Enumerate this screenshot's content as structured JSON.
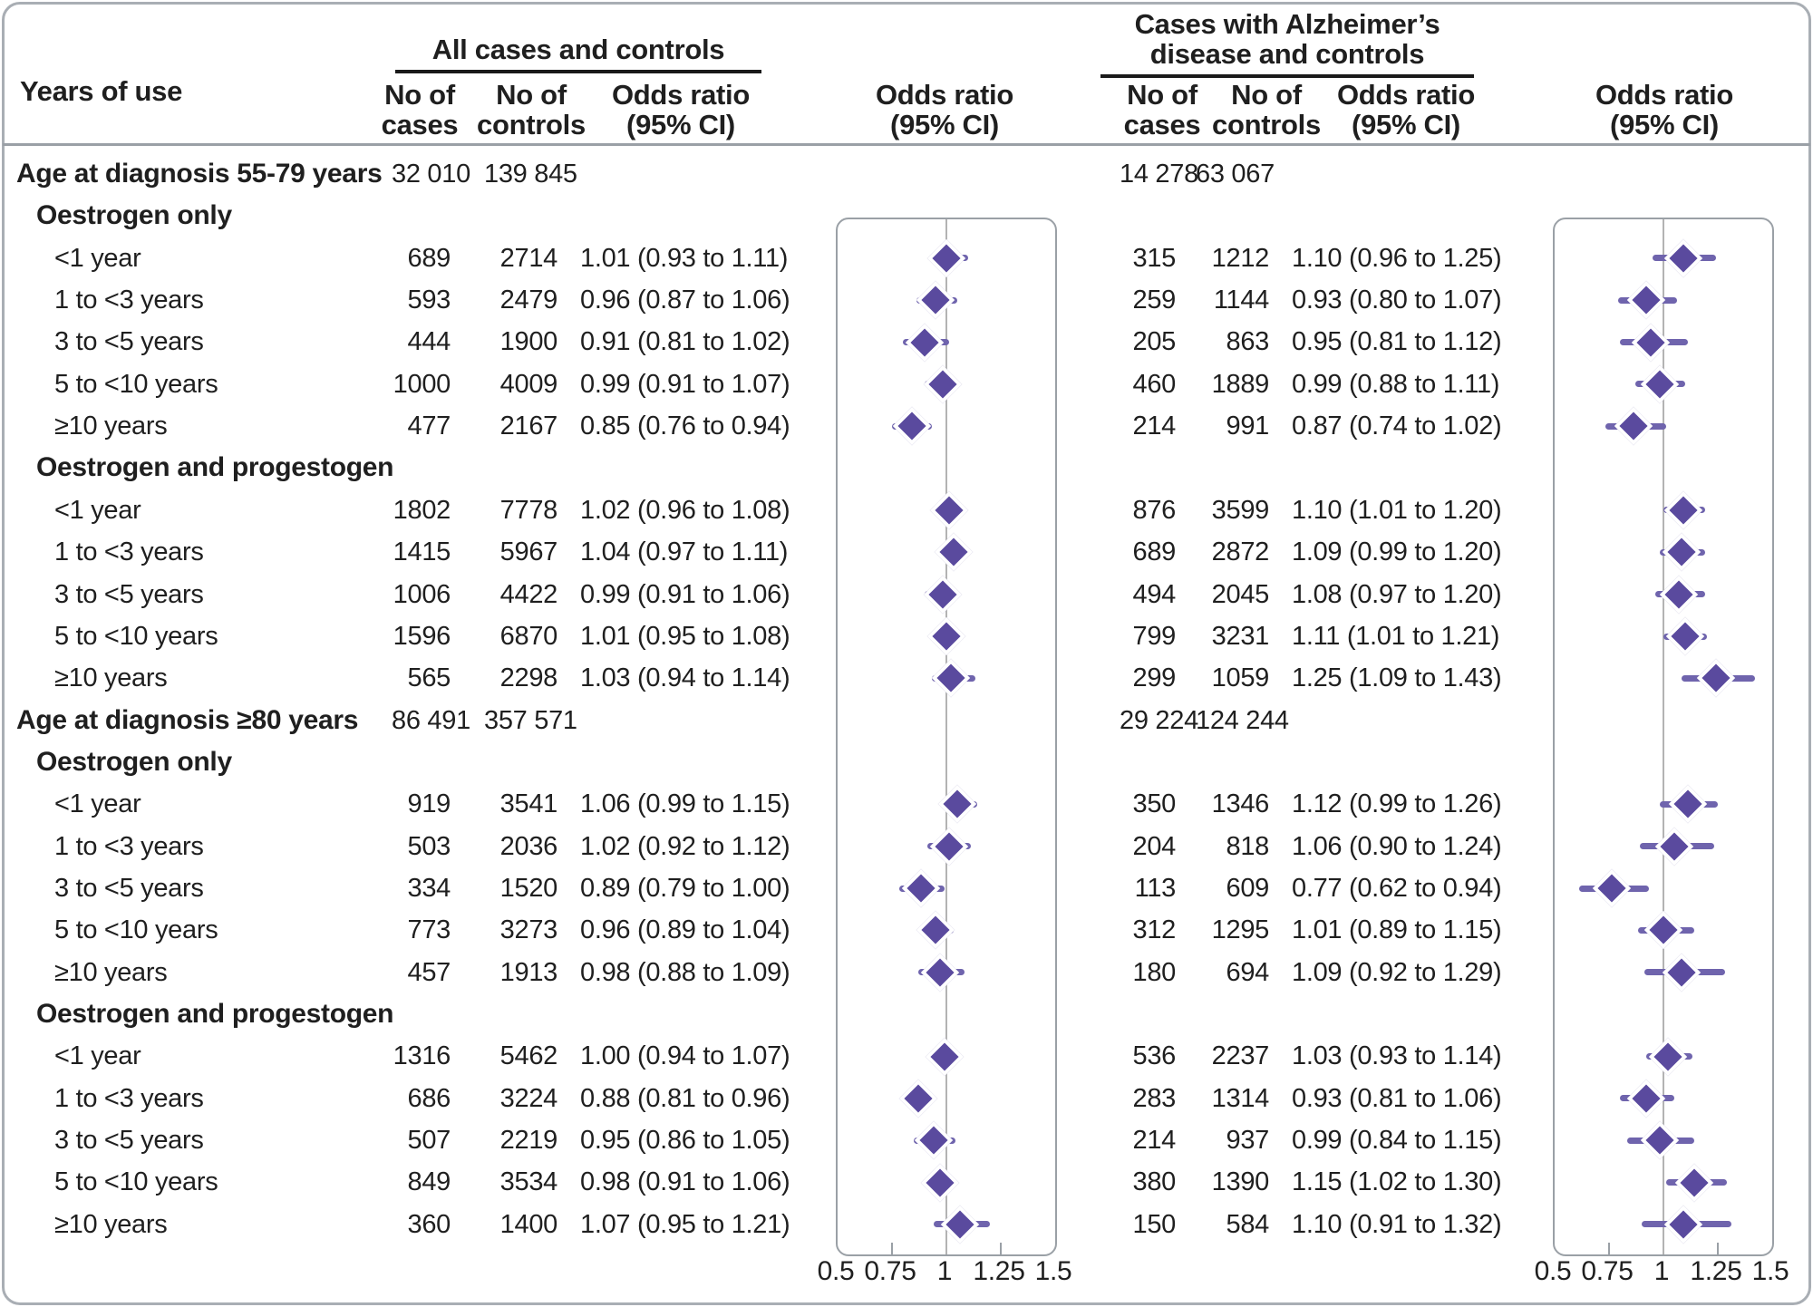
{
  "header": {
    "row_label_col": "Years of use",
    "no_of": "No of",
    "cases": "cases",
    "controls": "controls",
    "odds_ratio": "Odds ratio",
    "ci": "(95% CI)",
    "group1_title": "All cases and controls",
    "group2_title": "Cases with Alzheimer’s\ndisease and controls"
  },
  "colors": {
    "marker_fill": "#5a4a9e",
    "ci_line": "#6f64ad",
    "panel_border": "#9aa0a6",
    "ref_line": "#b3b3b3",
    "frame": "#a9aeb4",
    "text": "#1f1f1f"
  },
  "chart_data": {
    "type": "forest",
    "panels": [
      {
        "name": "All cases and controls",
        "xlim": [
          0.5,
          1.5
        ],
        "ref_line": 1,
        "tick_labels": [
          "0.5",
          "0.75",
          "1",
          "1.25",
          "1.5"
        ],
        "tick_values": [
          0.5,
          0.75,
          1,
          1.25,
          1.5
        ]
      },
      {
        "name": "Cases with Alzheimer’s disease and controls",
        "xlim": [
          0.5,
          1.5
        ],
        "ref_line": 1,
        "tick_labels": [
          "0.5",
          "0.75",
          "1",
          "1.25",
          "1.5"
        ],
        "tick_values": [
          0.5,
          0.75,
          1,
          1.25,
          1.5
        ]
      }
    ],
    "rows": [
      {
        "type": "section",
        "label": "Age at diagnosis 55-79 years",
        "all": {
          "cases": "32 010",
          "controls": "139 845"
        },
        "alz": {
          "cases": "14 278",
          "controls": "63 067"
        }
      },
      {
        "type": "subsection",
        "label": "Oestrogen only"
      },
      {
        "type": "item",
        "label": "<1 year",
        "all": {
          "cases": "689",
          "controls": "2714",
          "or_text": "1.01 (0.93 to 1.11)",
          "or": 1.01,
          "lo": 0.93,
          "hi": 1.11
        },
        "alz": {
          "cases": "315",
          "controls": "1212",
          "or_text": "1.10 (0.96 to 1.25)",
          "or": 1.1,
          "lo": 0.96,
          "hi": 1.25
        }
      },
      {
        "type": "item",
        "label": "1 to <3 years",
        "all": {
          "cases": "593",
          "controls": "2479",
          "or_text": "0.96 (0.87 to 1.06)",
          "or": 0.96,
          "lo": 0.87,
          "hi": 1.06
        },
        "alz": {
          "cases": "259",
          "controls": "1144",
          "or_text": "0.93 (0.80 to 1.07)",
          "or": 0.93,
          "lo": 0.8,
          "hi": 1.07
        }
      },
      {
        "type": "item",
        "label": "3 to <5 years",
        "all": {
          "cases": "444",
          "controls": "1900",
          "or_text": "0.91 (0.81 to 1.02)",
          "or": 0.91,
          "lo": 0.81,
          "hi": 1.02
        },
        "alz": {
          "cases": "205",
          "controls": "863",
          "or_text": "0.95 (0.81 to 1.12)",
          "or": 0.95,
          "lo": 0.81,
          "hi": 1.12
        }
      },
      {
        "type": "item",
        "label": "5 to <10 years",
        "all": {
          "cases": "1000",
          "controls": "4009",
          "or_text": "0.99 (0.91 to 1.07)",
          "or": 0.99,
          "lo": 0.91,
          "hi": 1.07
        },
        "alz": {
          "cases": "460",
          "controls": "1889",
          "or_text": "0.99 (0.88 to 1.11)",
          "or": 0.99,
          "lo": 0.88,
          "hi": 1.11
        }
      },
      {
        "type": "item",
        "label": "≥10 years",
        "all": {
          "cases": "477",
          "controls": "2167",
          "or_text": "0.85 (0.76 to 0.94)",
          "or": 0.85,
          "lo": 0.76,
          "hi": 0.94
        },
        "alz": {
          "cases": "214",
          "controls": "991",
          "or_text": "0.87 (0.74 to 1.02)",
          "or": 0.87,
          "lo": 0.74,
          "hi": 1.02
        }
      },
      {
        "type": "subsection",
        "label": "Oestrogen and progestogen"
      },
      {
        "type": "item",
        "label": "<1 year",
        "all": {
          "cases": "1802",
          "controls": "7778",
          "or_text": "1.02 (0.96 to 1.08)",
          "or": 1.02,
          "lo": 0.96,
          "hi": 1.08
        },
        "alz": {
          "cases": "876",
          "controls": "3599",
          "or_text": "1.10 (1.01 to 1.20)",
          "or": 1.1,
          "lo": 1.01,
          "hi": 1.2
        }
      },
      {
        "type": "item",
        "label": "1 to <3 years",
        "all": {
          "cases": "1415",
          "controls": "5967",
          "or_text": "1.04 (0.97 to 1.11)",
          "or": 1.04,
          "lo": 0.97,
          "hi": 1.11
        },
        "alz": {
          "cases": "689",
          "controls": "2872",
          "or_text": "1.09 (0.99 to 1.20)",
          "or": 1.09,
          "lo": 0.99,
          "hi": 1.2
        }
      },
      {
        "type": "item",
        "label": "3 to <5 years",
        "all": {
          "cases": "1006",
          "controls": "4422",
          "or_text": "0.99 (0.91 to 1.06)",
          "or": 0.99,
          "lo": 0.91,
          "hi": 1.06
        },
        "alz": {
          "cases": "494",
          "controls": "2045",
          "or_text": "1.08 (0.97 to 1.20)",
          "or": 1.08,
          "lo": 0.97,
          "hi": 1.2
        }
      },
      {
        "type": "item",
        "label": "5 to <10 years",
        "all": {
          "cases": "1596",
          "controls": "6870",
          "or_text": "1.01 (0.95 to 1.08)",
          "or": 1.01,
          "lo": 0.95,
          "hi": 1.08
        },
        "alz": {
          "cases": "799",
          "controls": "3231",
          "or_text": "1.11 (1.01 to 1.21)",
          "or": 1.11,
          "lo": 1.01,
          "hi": 1.21
        }
      },
      {
        "type": "item",
        "label": "≥10 years",
        "all": {
          "cases": "565",
          "controls": "2298",
          "or_text": "1.03 (0.94 to 1.14)",
          "or": 1.03,
          "lo": 0.94,
          "hi": 1.14
        },
        "alz": {
          "cases": "299",
          "controls": "1059",
          "or_text": "1.25 (1.09 to 1.43)",
          "or": 1.25,
          "lo": 1.09,
          "hi": 1.43
        }
      },
      {
        "type": "section",
        "label": "Age at diagnosis ≥80 years",
        "all": {
          "cases": "86 491",
          "controls": "357 571"
        },
        "alz": {
          "cases": "29 224",
          "controls": "124 244"
        }
      },
      {
        "type": "subsection",
        "label": "Oestrogen only"
      },
      {
        "type": "item",
        "label": "<1 year",
        "all": {
          "cases": "919",
          "controls": "3541",
          "or_text": "1.06 (0.99 to 1.15)",
          "or": 1.06,
          "lo": 0.99,
          "hi": 1.15
        },
        "alz": {
          "cases": "350",
          "controls": "1346",
          "or_text": "1.12 (0.99 to 1.26)",
          "or": 1.12,
          "lo": 0.99,
          "hi": 1.26
        }
      },
      {
        "type": "item",
        "label": "1 to <3 years",
        "all": {
          "cases": "503",
          "controls": "2036",
          "or_text": "1.02 (0.92 to 1.12)",
          "or": 1.02,
          "lo": 0.92,
          "hi": 1.12
        },
        "alz": {
          "cases": "204",
          "controls": "818",
          "or_text": "1.06 (0.90 to 1.24)",
          "or": 1.06,
          "lo": 0.9,
          "hi": 1.24
        }
      },
      {
        "type": "item",
        "label": "3 to <5 years",
        "all": {
          "cases": "334",
          "controls": "1520",
          "or_text": "0.89 (0.79 to 1.00)",
          "or": 0.89,
          "lo": 0.79,
          "hi": 1.0
        },
        "alz": {
          "cases": "113",
          "controls": "609",
          "or_text": "0.77 (0.62 to 0.94)",
          "or": 0.77,
          "lo": 0.62,
          "hi": 0.94
        }
      },
      {
        "type": "item",
        "label": "5 to <10 years",
        "all": {
          "cases": "773",
          "controls": "3273",
          "or_text": "0.96 (0.89 to 1.04)",
          "or": 0.96,
          "lo": 0.89,
          "hi": 1.04
        },
        "alz": {
          "cases": "312",
          "controls": "1295",
          "or_text": "1.01 (0.89 to 1.15)",
          "or": 1.01,
          "lo": 0.89,
          "hi": 1.15
        }
      },
      {
        "type": "item",
        "label": "≥10 years",
        "all": {
          "cases": "457",
          "controls": "1913",
          "or_text": "0.98 (0.88 to 1.09)",
          "or": 0.98,
          "lo": 0.88,
          "hi": 1.09
        },
        "alz": {
          "cases": "180",
          "controls": "694",
          "or_text": "1.09 (0.92 to 1.29)",
          "or": 1.09,
          "lo": 0.92,
          "hi": 1.29
        }
      },
      {
        "type": "subsection",
        "label": "Oestrogen and progestogen"
      },
      {
        "type": "item",
        "label": "<1 year",
        "all": {
          "cases": "1316",
          "controls": "5462",
          "or_text": "1.00 (0.94 to 1.07)",
          "or": 1.0,
          "lo": 0.94,
          "hi": 1.07
        },
        "alz": {
          "cases": "536",
          "controls": "2237",
          "or_text": "1.03 (0.93 to 1.14)",
          "or": 1.03,
          "lo": 0.93,
          "hi": 1.14
        }
      },
      {
        "type": "item",
        "label": "1 to <3 years",
        "all": {
          "cases": "686",
          "controls": "3224",
          "or_text": "0.88 (0.81 to 0.96)",
          "or": 0.88,
          "lo": 0.81,
          "hi": 0.96
        },
        "alz": {
          "cases": "283",
          "controls": "1314",
          "or_text": "0.93 (0.81 to 1.06)",
          "or": 0.93,
          "lo": 0.81,
          "hi": 1.06
        }
      },
      {
        "type": "item",
        "label": "3 to <5 years",
        "all": {
          "cases": "507",
          "controls": "2219",
          "or_text": "0.95 (0.86 to 1.05)",
          "or": 0.95,
          "lo": 0.86,
          "hi": 1.05
        },
        "alz": {
          "cases": "214",
          "controls": "937",
          "or_text": "0.99 (0.84 to 1.15)",
          "or": 0.99,
          "lo": 0.84,
          "hi": 1.15
        }
      },
      {
        "type": "item",
        "label": "5 to <10 years",
        "all": {
          "cases": "849",
          "controls": "3534",
          "or_text": "0.98 (0.91 to 1.06)",
          "or": 0.98,
          "lo": 0.91,
          "hi": 1.06
        },
        "alz": {
          "cases": "380",
          "controls": "1390",
          "or_text": "1.15 (1.02 to 1.30)",
          "or": 1.15,
          "lo": 1.02,
          "hi": 1.3
        }
      },
      {
        "type": "item",
        "label": "≥10 years",
        "all": {
          "cases": "360",
          "controls": "1400",
          "or_text": "1.07 (0.95 to 1.21)",
          "or": 1.07,
          "lo": 0.95,
          "hi": 1.21
        },
        "alz": {
          "cases": "150",
          "controls": "584",
          "or_text": "1.10 (0.91 to 1.32)",
          "or": 1.1,
          "lo": 0.91,
          "hi": 1.32
        }
      }
    ]
  }
}
